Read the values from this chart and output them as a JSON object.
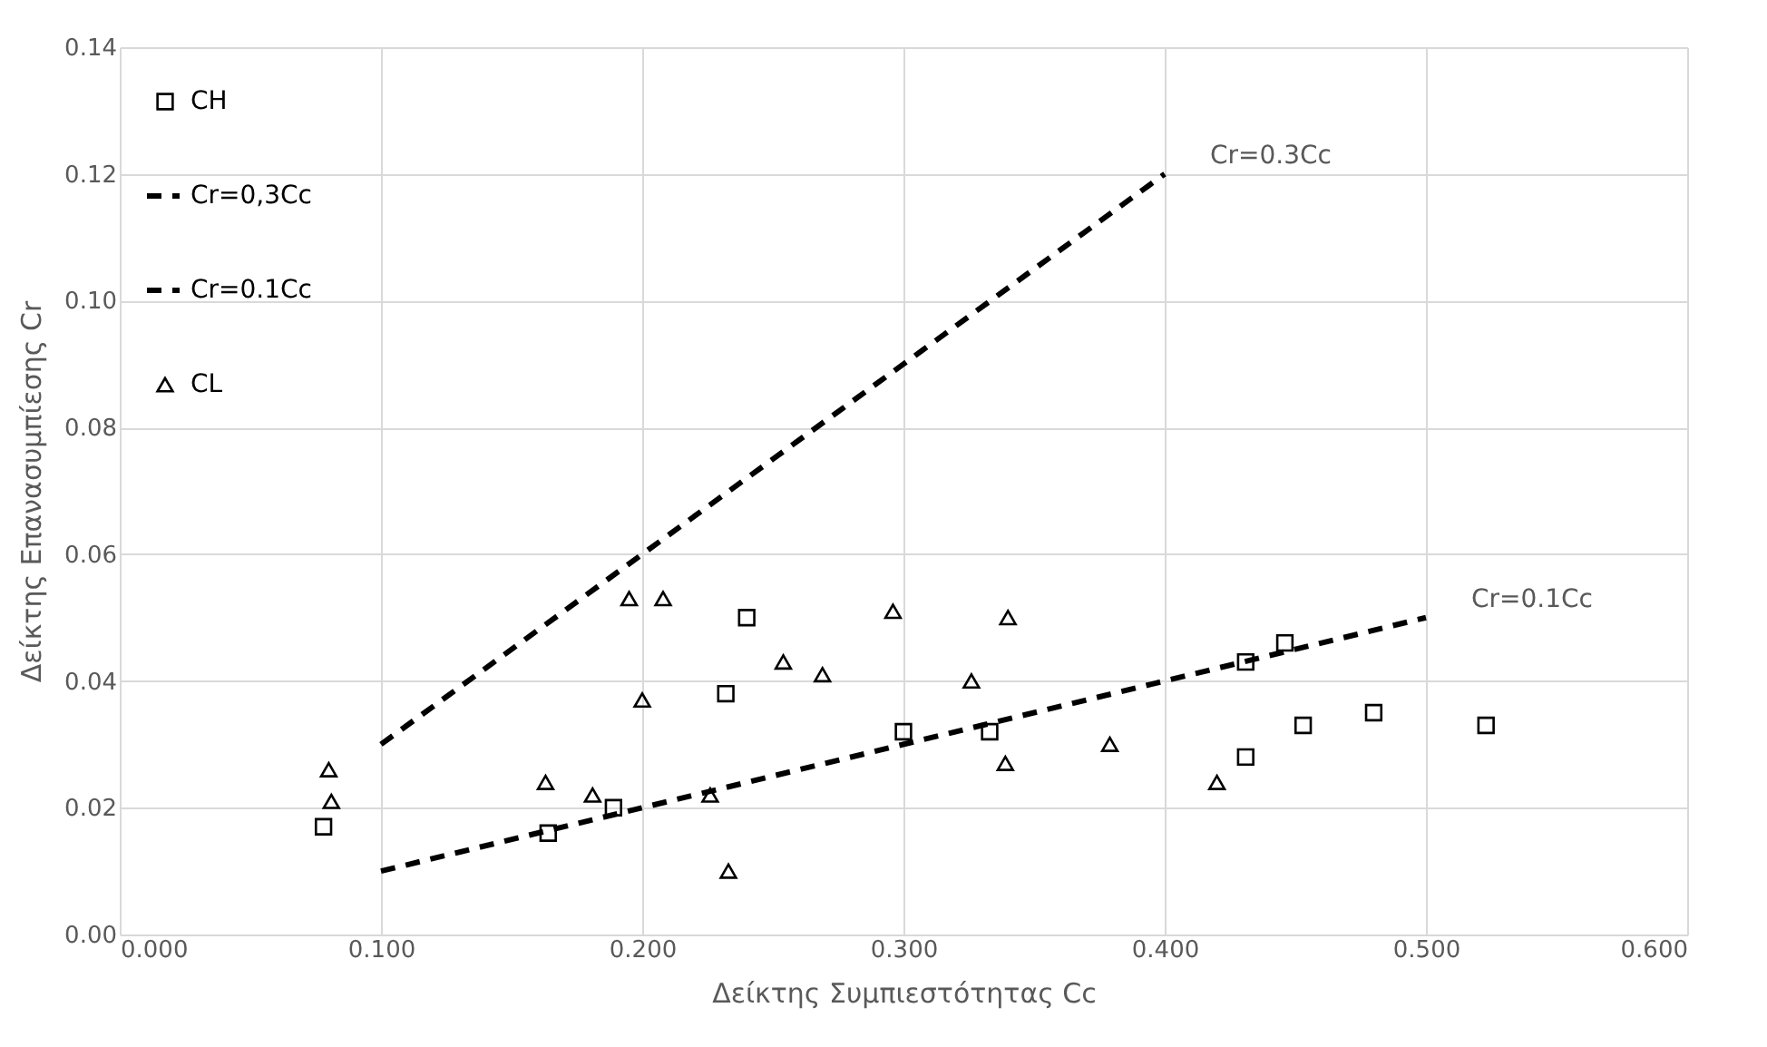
{
  "chart_data": {
    "type": "scatter",
    "xlabel": "Δείκτης Συμπιεστότητας Cc",
    "ylabel": "Δείκτης Επανασυμπίεσης Cr",
    "xlim": [
      0,
      0.6
    ],
    "ylim": [
      0,
      0.14
    ],
    "xticks": [
      {
        "value": 0,
        "label": "0.000"
      },
      {
        "value": 0.1,
        "label": "0.100"
      },
      {
        "value": 0.2,
        "label": "0.200"
      },
      {
        "value": 0.3,
        "label": "0.300"
      },
      {
        "value": 0.4,
        "label": "0.400"
      },
      {
        "value": 0.5,
        "label": "0.500"
      },
      {
        "value": 0.6,
        "label": "0.600"
      }
    ],
    "yticks": [
      {
        "value": 0,
        "label": "0.00"
      },
      {
        "value": 0.02,
        "label": "0.02"
      },
      {
        "value": 0.04,
        "label": "0.04"
      },
      {
        "value": 0.06,
        "label": "0.06"
      },
      {
        "value": 0.08,
        "label": "0.08"
      },
      {
        "value": 0.1,
        "label": "0.10"
      },
      {
        "value": 0.12,
        "label": "0.12"
      },
      {
        "value": 0.14,
        "label": "0.14"
      }
    ],
    "grid": true,
    "legend": "top left",
    "series": [
      {
        "name": "CH",
        "marker": "square",
        "color": "#000000",
        "x": [
          0.078,
          0.164,
          0.189,
          0.232,
          0.24,
          0.3,
          0.333,
          0.431,
          0.431,
          0.446,
          0.453,
          0.48,
          0.523
        ],
        "values": [
          0.017,
          0.016,
          0.02,
          0.038,
          0.05,
          0.032,
          0.032,
          0.028,
          0.043,
          0.046,
          0.033,
          0.035,
          0.033
        ]
      },
      {
        "name": "Cr=0,3Cc",
        "type": "line",
        "marker": "none",
        "line_style": "dashed",
        "color": "#000000",
        "x": [
          0.1,
          0.4
        ],
        "values": [
          0.03,
          0.12
        ]
      },
      {
        "name": "Cr=0.1Cc",
        "type": "line",
        "marker": "none",
        "line_style": "dashed",
        "color": "#000000",
        "x": [
          0.1,
          0.5
        ],
        "values": [
          0.01,
          0.05
        ]
      },
      {
        "name": "CL",
        "marker": "triangle",
        "color": "#000000",
        "x": [
          0.08,
          0.081,
          0.163,
          0.181,
          0.195,
          0.208,
          0.2,
          0.226,
          0.233,
          0.254,
          0.269,
          0.296,
          0.326,
          0.34,
          0.339,
          0.379,
          0.42
        ],
        "values": [
          0.026,
          0.021,
          0.024,
          0.022,
          0.053,
          0.053,
          0.037,
          0.022,
          0.01,
          0.043,
          0.041,
          0.051,
          0.04,
          0.05,
          0.027,
          0.03,
          0.024
        ]
      }
    ],
    "annotations": [
      {
        "text": "Cr=0.3Cc",
        "x": 0.4,
        "y": 0.12
      },
      {
        "text": "Cr=0.1Cc",
        "x": 0.5,
        "y": 0.05
      }
    ]
  }
}
